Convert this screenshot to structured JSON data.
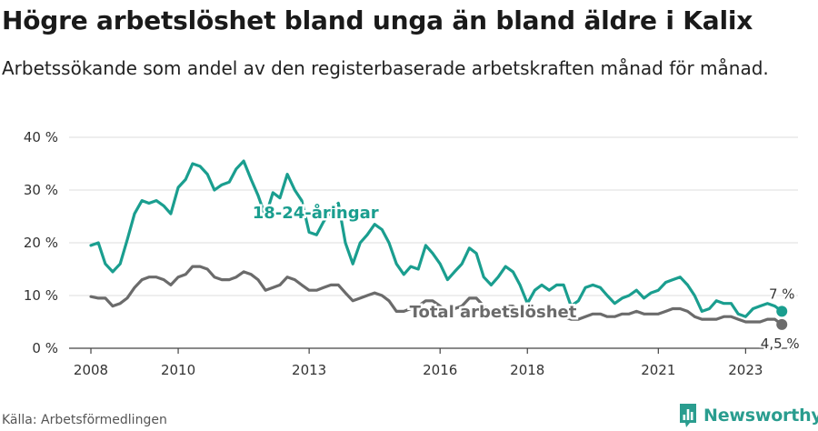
{
  "header": {
    "title": "Högre arbetslöshet bland unga än bland äldre i Kalix",
    "subtitle": "Arbetssökande som andel av den registerbaserade arbetskraften månad för månad."
  },
  "footer": {
    "source": "Källa: Arbetsförmedlingen",
    "brand": "Newsworthy"
  },
  "colors": {
    "youth": "#1a9e8f",
    "total": "#6b6b6b",
    "grid": "#dddddd",
    "brand": "#2a9d8f"
  },
  "chart_data": {
    "type": "line",
    "title": "Högre arbetslöshet bland unga än bland äldre i Kalix",
    "xlabel": "",
    "ylabel": "",
    "xlim": [
      2007.5,
      2024.2
    ],
    "ylim": [
      0,
      40
    ],
    "y_ticks": [
      {
        "value": 0,
        "label": "0 %"
      },
      {
        "value": 10,
        "label": "10 %"
      },
      {
        "value": 20,
        "label": "20 %"
      },
      {
        "value": 30,
        "label": "30 %"
      },
      {
        "value": 40,
        "label": "40 %"
      }
    ],
    "x_ticks": [
      {
        "value": 2008,
        "label": "2008"
      },
      {
        "value": 2010,
        "label": "2010"
      },
      {
        "value": 2013,
        "label": "2013"
      },
      {
        "value": 2016,
        "label": "2016"
      },
      {
        "value": 2018,
        "label": "2018"
      },
      {
        "value": 2021,
        "label": "2021"
      },
      {
        "value": 2023,
        "label": "2023"
      }
    ],
    "series": [
      {
        "name": "18-24-åringar",
        "label": "18-24-åringar",
        "end_label": "7 %",
        "color": "#1a9e8f",
        "points": [
          [
            2008.0,
            19.5
          ],
          [
            2008.17,
            20
          ],
          [
            2008.33,
            16
          ],
          [
            2008.5,
            14.5
          ],
          [
            2008.67,
            16
          ],
          [
            2008.83,
            20.5
          ],
          [
            2009.0,
            25.5
          ],
          [
            2009.17,
            28
          ],
          [
            2009.33,
            27.5
          ],
          [
            2009.5,
            28
          ],
          [
            2009.67,
            27
          ],
          [
            2009.83,
            25.5
          ],
          [
            2010.0,
            30.5
          ],
          [
            2010.17,
            32
          ],
          [
            2010.33,
            35
          ],
          [
            2010.5,
            34.5
          ],
          [
            2010.67,
            33
          ],
          [
            2010.83,
            30
          ],
          [
            2011.0,
            31
          ],
          [
            2011.17,
            31.5
          ],
          [
            2011.33,
            34
          ],
          [
            2011.5,
            35.5
          ],
          [
            2011.67,
            32
          ],
          [
            2011.83,
            29
          ],
          [
            2012.0,
            25
          ],
          [
            2012.17,
            29.5
          ],
          [
            2012.33,
            28.5
          ],
          [
            2012.5,
            33
          ],
          [
            2012.67,
            30
          ],
          [
            2012.83,
            28
          ],
          [
            2013.0,
            22
          ],
          [
            2013.17,
            21.5
          ],
          [
            2013.33,
            24
          ],
          [
            2013.5,
            26
          ],
          [
            2013.67,
            27.5
          ],
          [
            2013.83,
            20
          ],
          [
            2014.0,
            16
          ],
          [
            2014.17,
            20
          ],
          [
            2014.33,
            21.5
          ],
          [
            2014.5,
            23.5
          ],
          [
            2014.67,
            22.5
          ],
          [
            2014.83,
            20
          ],
          [
            2015.0,
            16
          ],
          [
            2015.17,
            14
          ],
          [
            2015.33,
            15.5
          ],
          [
            2015.5,
            15
          ],
          [
            2015.67,
            19.5
          ],
          [
            2015.83,
            18
          ],
          [
            2016.0,
            16
          ],
          [
            2016.17,
            13
          ],
          [
            2016.33,
            14.5
          ],
          [
            2016.5,
            16
          ],
          [
            2016.67,
            19
          ],
          [
            2016.83,
            18
          ],
          [
            2017.0,
            13.5
          ],
          [
            2017.17,
            12
          ],
          [
            2017.33,
            13.5
          ],
          [
            2017.5,
            15.5
          ],
          [
            2017.67,
            14.5
          ],
          [
            2017.83,
            12
          ],
          [
            2018.0,
            8.5
          ],
          [
            2018.17,
            11
          ],
          [
            2018.33,
            12
          ],
          [
            2018.5,
            11
          ],
          [
            2018.67,
            12
          ],
          [
            2018.83,
            12
          ],
          [
            2019.0,
            8
          ],
          [
            2019.17,
            9
          ],
          [
            2019.33,
            11.5
          ],
          [
            2019.5,
            12
          ],
          [
            2019.67,
            11.5
          ],
          [
            2019.83,
            10
          ],
          [
            2020.0,
            8.5
          ],
          [
            2020.17,
            9.5
          ],
          [
            2020.33,
            10
          ],
          [
            2020.5,
            11
          ],
          [
            2020.67,
            9.5
          ],
          [
            2020.83,
            10.5
          ],
          [
            2021.0,
            11
          ],
          [
            2021.17,
            12.5
          ],
          [
            2021.33,
            13
          ],
          [
            2021.5,
            13.5
          ],
          [
            2021.67,
            12
          ],
          [
            2021.83,
            10
          ],
          [
            2022.0,
            7
          ],
          [
            2022.17,
            7.5
          ],
          [
            2022.33,
            9
          ],
          [
            2022.5,
            8.5
          ],
          [
            2022.67,
            8.5
          ],
          [
            2022.83,
            6.5
          ],
          [
            2023.0,
            6
          ],
          [
            2023.17,
            7.5
          ],
          [
            2023.33,
            8
          ],
          [
            2023.5,
            8.5
          ],
          [
            2023.67,
            8
          ],
          [
            2023.83,
            7
          ]
        ]
      },
      {
        "name": "Total arbetslöshet",
        "label": "Total arbetslöshet",
        "end_label": "4,5 %",
        "color": "#6b6b6b",
        "points": [
          [
            2008.0,
            9.8
          ],
          [
            2008.17,
            9.5
          ],
          [
            2008.33,
            9.5
          ],
          [
            2008.5,
            8
          ],
          [
            2008.67,
            8.5
          ],
          [
            2008.83,
            9.5
          ],
          [
            2009.0,
            11.5
          ],
          [
            2009.17,
            13
          ],
          [
            2009.33,
            13.5
          ],
          [
            2009.5,
            13.5
          ],
          [
            2009.67,
            13
          ],
          [
            2009.83,
            12
          ],
          [
            2010.0,
            13.5
          ],
          [
            2010.17,
            14
          ],
          [
            2010.33,
            15.5
          ],
          [
            2010.5,
            15.5
          ],
          [
            2010.67,
            15
          ],
          [
            2010.83,
            13.5
          ],
          [
            2011.0,
            13
          ],
          [
            2011.17,
            13
          ],
          [
            2011.33,
            13.5
          ],
          [
            2011.5,
            14.5
          ],
          [
            2011.67,
            14
          ],
          [
            2011.83,
            13
          ],
          [
            2012.0,
            11
          ],
          [
            2012.17,
            11.5
          ],
          [
            2012.33,
            12
          ],
          [
            2012.5,
            13.5
          ],
          [
            2012.67,
            13
          ],
          [
            2012.83,
            12
          ],
          [
            2013.0,
            11
          ],
          [
            2013.17,
            11
          ],
          [
            2013.33,
            11.5
          ],
          [
            2013.5,
            12
          ],
          [
            2013.67,
            12
          ],
          [
            2013.83,
            10.5
          ],
          [
            2014.0,
            9
          ],
          [
            2014.17,
            9.5
          ],
          [
            2014.33,
            10
          ],
          [
            2014.5,
            10.5
          ],
          [
            2014.67,
            10
          ],
          [
            2014.83,
            9
          ],
          [
            2015.0,
            7
          ],
          [
            2015.17,
            7
          ],
          [
            2015.33,
            7.5
          ],
          [
            2015.5,
            8
          ],
          [
            2015.67,
            9
          ],
          [
            2015.83,
            9
          ],
          [
            2016.0,
            8
          ],
          [
            2016.17,
            7
          ],
          [
            2016.33,
            7.5
          ],
          [
            2016.5,
            8
          ],
          [
            2016.67,
            9.5
          ],
          [
            2016.83,
            9.5
          ],
          [
            2017.0,
            8
          ],
          [
            2017.17,
            7
          ],
          [
            2017.33,
            7.5
          ],
          [
            2017.5,
            8
          ],
          [
            2017.67,
            8
          ],
          [
            2017.83,
            7
          ],
          [
            2018.0,
            6
          ],
          [
            2018.17,
            6.5
          ],
          [
            2018.33,
            7
          ],
          [
            2018.5,
            6.5
          ],
          [
            2018.67,
            6.5
          ],
          [
            2018.83,
            6
          ],
          [
            2019.0,
            5.5
          ],
          [
            2019.17,
            5.5
          ],
          [
            2019.33,
            6
          ],
          [
            2019.5,
            6.5
          ],
          [
            2019.67,
            6.5
          ],
          [
            2019.83,
            6
          ],
          [
            2020.0,
            6
          ],
          [
            2020.17,
            6.5
          ],
          [
            2020.33,
            6.5
          ],
          [
            2020.5,
            7
          ],
          [
            2020.67,
            6.5
          ],
          [
            2020.83,
            6.5
          ],
          [
            2021.0,
            6.5
          ],
          [
            2021.17,
            7
          ],
          [
            2021.33,
            7.5
          ],
          [
            2021.5,
            7.5
          ],
          [
            2021.67,
            7
          ],
          [
            2021.83,
            6
          ],
          [
            2022.0,
            5.5
          ],
          [
            2022.17,
            5.5
          ],
          [
            2022.33,
            5.5
          ],
          [
            2022.5,
            6
          ],
          [
            2022.67,
            6
          ],
          [
            2022.83,
            5.5
          ],
          [
            2023.0,
            5
          ],
          [
            2023.17,
            5
          ],
          [
            2023.33,
            5
          ],
          [
            2023.5,
            5.5
          ],
          [
            2023.67,
            5.5
          ],
          [
            2023.83,
            4.5
          ]
        ]
      }
    ]
  }
}
